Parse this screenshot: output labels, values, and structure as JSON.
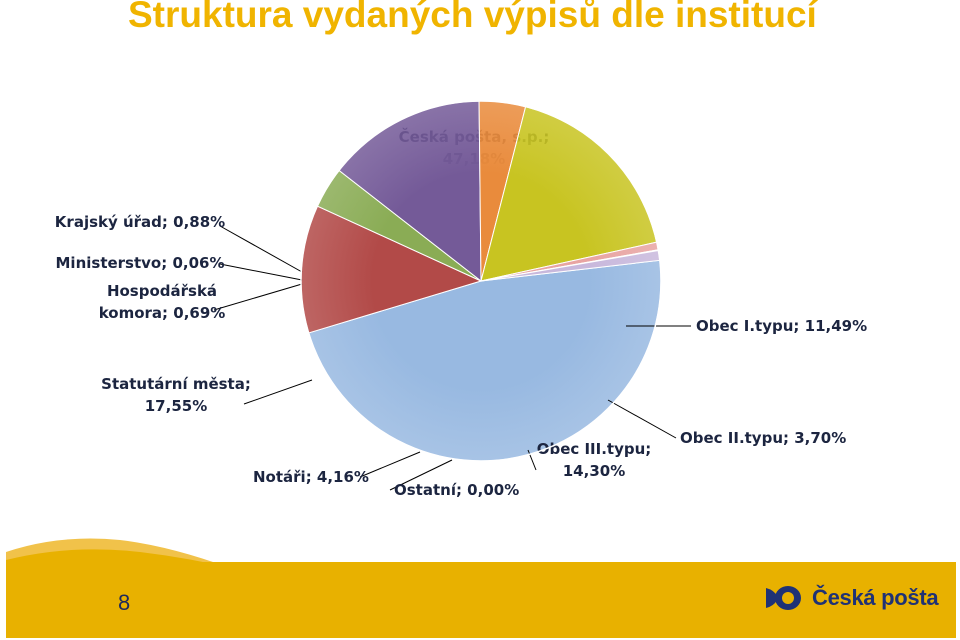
{
  "slide": {
    "title": "Struktura vydaných výpisů dle institucí",
    "page_number": "8",
    "brand": "Česká pošta"
  },
  "colors": {
    "title": "#f0b400",
    "footer": "#e8b100",
    "brand": "#1f3275"
  },
  "chart_data": {
    "type": "pie",
    "title": "",
    "slices": [
      {
        "name": "Česká pošta, s.p.",
        "value": 47.18,
        "label_lines": [
          "Česká pošta, s.p.;",
          "47,18%"
        ],
        "color": "#98b9e1"
      },
      {
        "name": "Obec I.typu",
        "value": 11.49,
        "label_lines": [
          "Obec I.typu; 11,49%"
        ],
        "color": "#b24a48"
      },
      {
        "name": "Obec II.typu",
        "value": 3.7,
        "label_lines": [
          "Obec II.typu; 3,70%"
        ],
        "color": "#8aac55"
      },
      {
        "name": "Obec III.typu",
        "value": 14.3,
        "label_lines": [
          "Obec III.typu;",
          "14,30%"
        ],
        "color": "#745a98"
      },
      {
        "name": "Ostatní",
        "value": 0.0,
        "label_lines": [
          "Ostatní; 0,00%"
        ],
        "color": "#3f9eb8"
      },
      {
        "name": "Notáři",
        "value": 4.16,
        "label_lines": [
          "Notáři; 4,16%"
        ],
        "color": "#e98b3c"
      },
      {
        "name": "Statutární města",
        "value": 17.55,
        "label_lines": [
          "Statutární města;",
          "17,55%"
        ],
        "color": "#c8c421"
      },
      {
        "name": "Hospodářská komora",
        "value": 0.69,
        "label_lines": [
          "Hospodářská",
          "komora; 0,69%"
        ],
        "color": "#e8a4a2"
      },
      {
        "name": "Ministerstvo",
        "value": 0.06,
        "label_lines": [
          "Ministerstvo; 0,06%"
        ],
        "color": "#5b82b8"
      },
      {
        "name": "Krajský úřad",
        "value": 0.88,
        "label_lines": [
          "Krajský úřad; 0,88%"
        ],
        "color": "#c8b8dc"
      }
    ]
  }
}
